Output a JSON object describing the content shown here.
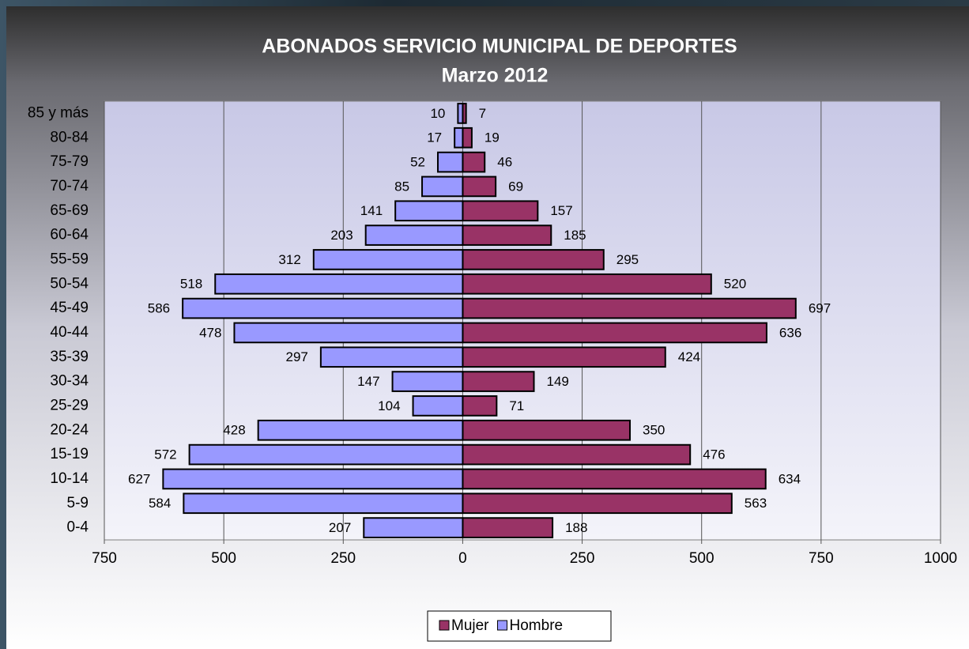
{
  "chart_data": {
    "type": "bar",
    "orientation": "horizontal",
    "stacked": true,
    "title": "ABONADOS SERVICIO MUNICIPAL DE DEPORTES",
    "subtitle": "Marzo 2012",
    "categories": [
      "0-4",
      "5-9",
      "10-14",
      "15-19",
      "20-24",
      "25-29",
      "30-34",
      "35-39",
      "40-44",
      "45-49",
      "50-54",
      "55-59",
      "60-64",
      "65-69",
      "70-74",
      "75-79",
      "80-84",
      "85 y más"
    ],
    "series": [
      {
        "name": "Mujer",
        "color": "#993366",
        "values": [
          188,
          563,
          634,
          476,
          350,
          71,
          149,
          424,
          636,
          697,
          520,
          295,
          185,
          157,
          69,
          46,
          19,
          7
        ]
      },
      {
        "name": "Hombre",
        "color": "#9999ff",
        "values": [
          -207,
          -584,
          -627,
          -572,
          -428,
          -104,
          -147,
          -297,
          -478,
          -586,
          -518,
          -312,
          -203,
          -141,
          -85,
          -52,
          -17,
          -10
        ],
        "value_labels": [
          "207",
          "584",
          "627",
          "572",
          "428",
          "104",
          "147",
          "297",
          "478",
          "586",
          "518",
          "312",
          "203",
          "141",
          "85",
          "52",
          "17",
          "10"
        ]
      }
    ],
    "xlim": [
      -750,
      1000
    ],
    "xticks": [
      {
        "value": -750,
        "label": "750"
      },
      {
        "value": -500,
        "label": "500"
      },
      {
        "value": -250,
        "label": "250"
      },
      0,
      250,
      500,
      750,
      1000
    ],
    "grid": true,
    "legend": "bottom"
  }
}
